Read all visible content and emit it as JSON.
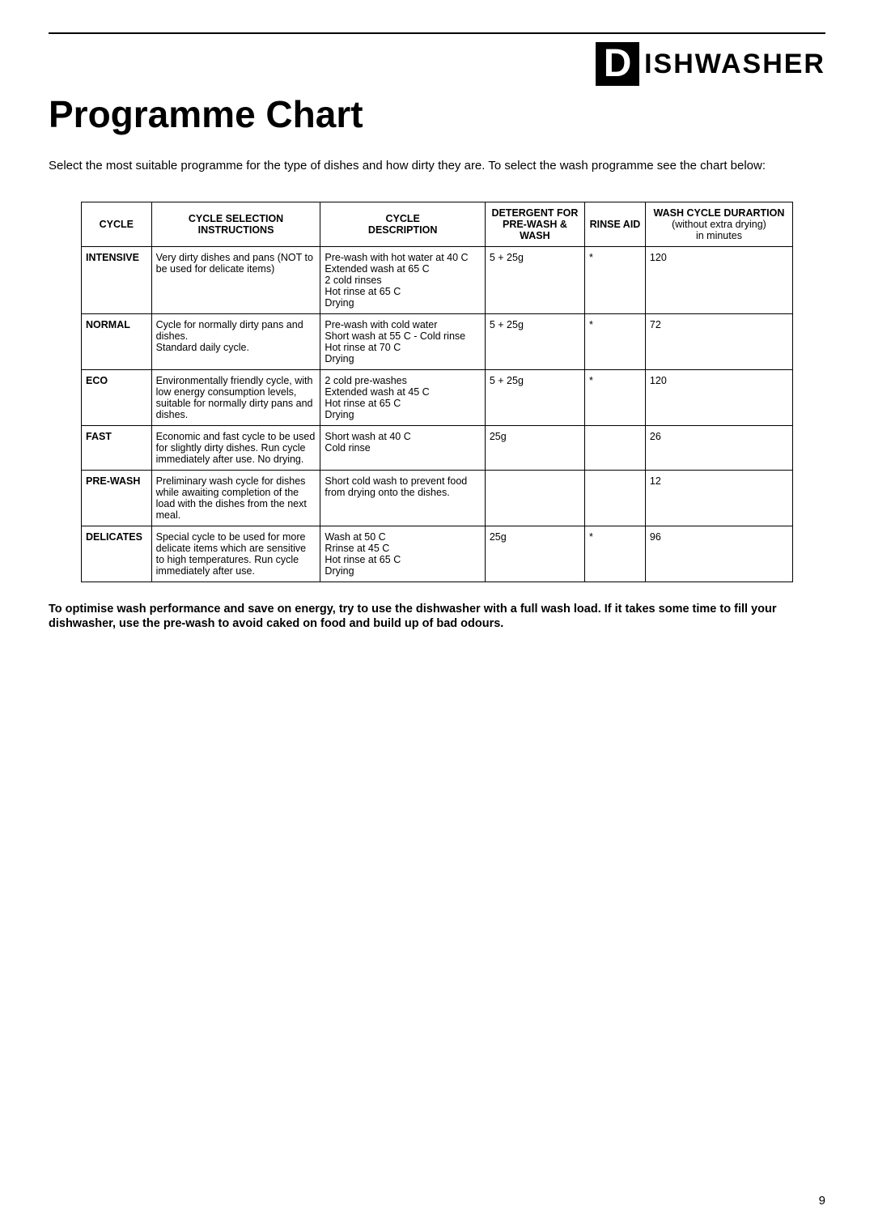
{
  "logo": {
    "letter": "D",
    "word": "ISHWASHER"
  },
  "title": "Programme Chart",
  "intro": "Select the most suitable programme for the type of dishes and how dirty they are. To select the wash programme see the chart below:",
  "table": {
    "headers": {
      "cycle": "CYCLE",
      "selection_l1": "CYCLE SELECTION",
      "selection_l2": "INSTRUCTIONS",
      "desc_l1": "CYCLE",
      "desc_l2": "DESCRIPTION",
      "detergent_l1": "DETERGENT FOR",
      "detergent_l2": "PRE-WASH & WASH",
      "rinse": "RINSE AID",
      "dur_l1": "WASH CYCLE DURARTION",
      "dur_l2": "(without extra drying)",
      "dur_l3": "in minutes"
    },
    "rows": [
      {
        "cycle": "INTENSIVE",
        "selection": "Very dirty dishes and pans (NOT to be used for delicate items)",
        "desc": "Pre-wash with hot water at 40 C\nExtended wash at 65 C\n2 cold rinses\nHot rinse at 65 C\nDrying",
        "detergent": "5 + 25g",
        "rinse": "*",
        "duration": "120"
      },
      {
        "cycle": "NORMAL",
        "selection": "Cycle for normally dirty pans and dishes.\nStandard daily cycle.",
        "desc": "Pre-wash with cold water\nShort wash at 55 C - Cold rinse\nHot rinse at 70 C\nDrying",
        "detergent": "5 + 25g",
        "rinse": "*",
        "duration": "72"
      },
      {
        "cycle": "ECO",
        "selection": "Environmentally friendly cycle, with low energy consumption levels, suitable for normally dirty pans and dishes.",
        "desc": "2 cold pre-washes\nExtended wash at 45 C\nHot rinse at 65 C\nDrying",
        "detergent": "5 + 25g",
        "rinse": "*",
        "duration": "120"
      },
      {
        "cycle": "FAST",
        "selection": "Economic and fast cycle to be used for slightly dirty dishes. Run cycle immediately after use. No drying.",
        "desc": "Short wash at 40 C\nCold rinse",
        "detergent": "25g",
        "rinse": "",
        "duration": "26"
      },
      {
        "cycle": "PRE-WASH",
        "selection": "Preliminary wash cycle for dishes while awaiting completion of the load with the dishes from the next meal.",
        "desc": "Short cold wash to prevent food from drying onto the dishes.",
        "detergent": "",
        "rinse": "",
        "duration": "12"
      },
      {
        "cycle": "DELICATES",
        "selection": "Special cycle to be used for more delicate items which are sensitive to high temperatures. Run cycle immediately after use.",
        "desc": "Wash at 50 C\nRrinse at 45 C\nHot rinse at 65 C\nDrying",
        "detergent": "25g",
        "rinse": "*",
        "duration": "96"
      }
    ]
  },
  "footer_note": "To optimise wash performance and save on energy, try to use the dishwasher with a full wash load.  If it takes some time to fill your dishwasher, use the pre-wash to avoid caked on food and build up of bad odours.",
  "page_number": "9",
  "colors": {
    "text": "#000000",
    "background": "#ffffff",
    "rule": "#000000"
  }
}
